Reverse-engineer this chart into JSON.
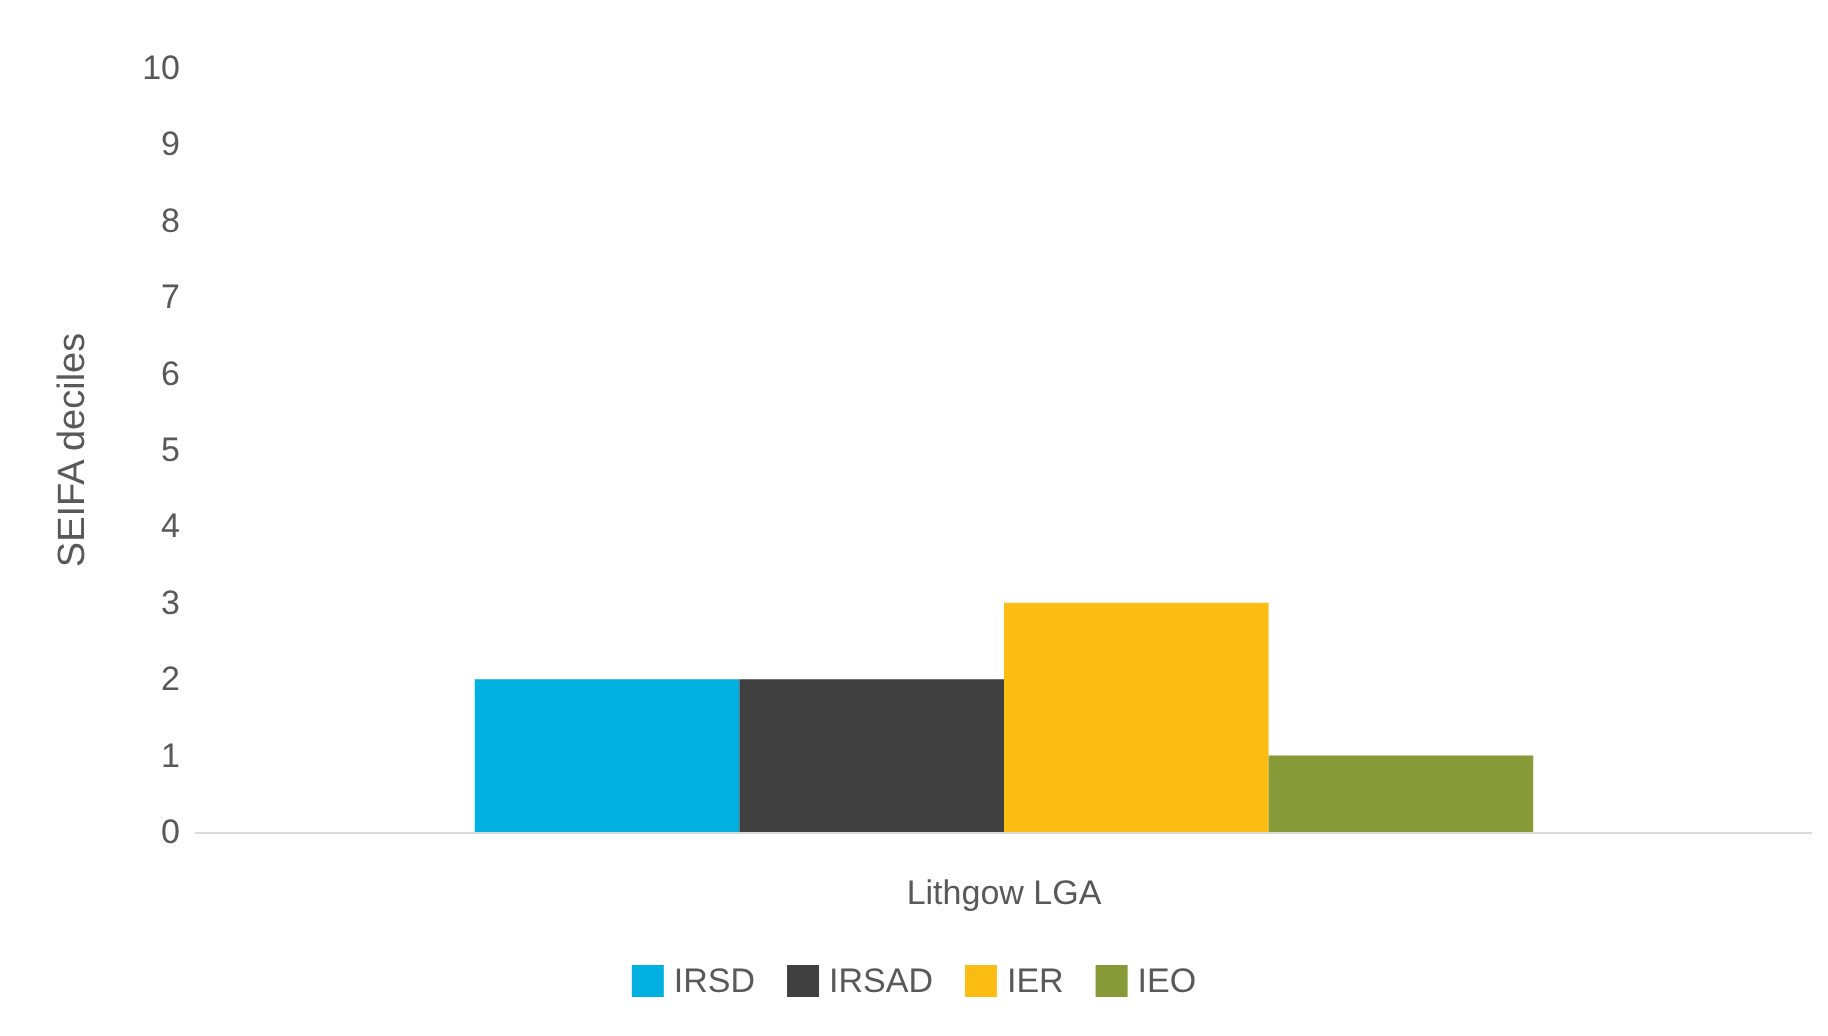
{
  "chart_data": {
    "type": "bar",
    "ylabel": "SEIFA deciles",
    "categories": [
      "Lithgow LGA"
    ],
    "series": [
      {
        "name": "IRSD",
        "color": "#00b0e0",
        "values": [
          2
        ]
      },
      {
        "name": "IRSAD",
        "color": "#404040",
        "values": [
          2
        ]
      },
      {
        "name": "IER",
        "color": "#fbbc14",
        "values": [
          3
        ]
      },
      {
        "name": "IEO",
        "color": "#879a37",
        "values": [
          1
        ]
      }
    ],
    "ylim": [
      0,
      10
    ],
    "yticks": [
      0,
      1,
      2,
      3,
      4,
      5,
      6,
      7,
      8,
      9,
      10
    ],
    "grid": false,
    "legend": "bottom"
  }
}
